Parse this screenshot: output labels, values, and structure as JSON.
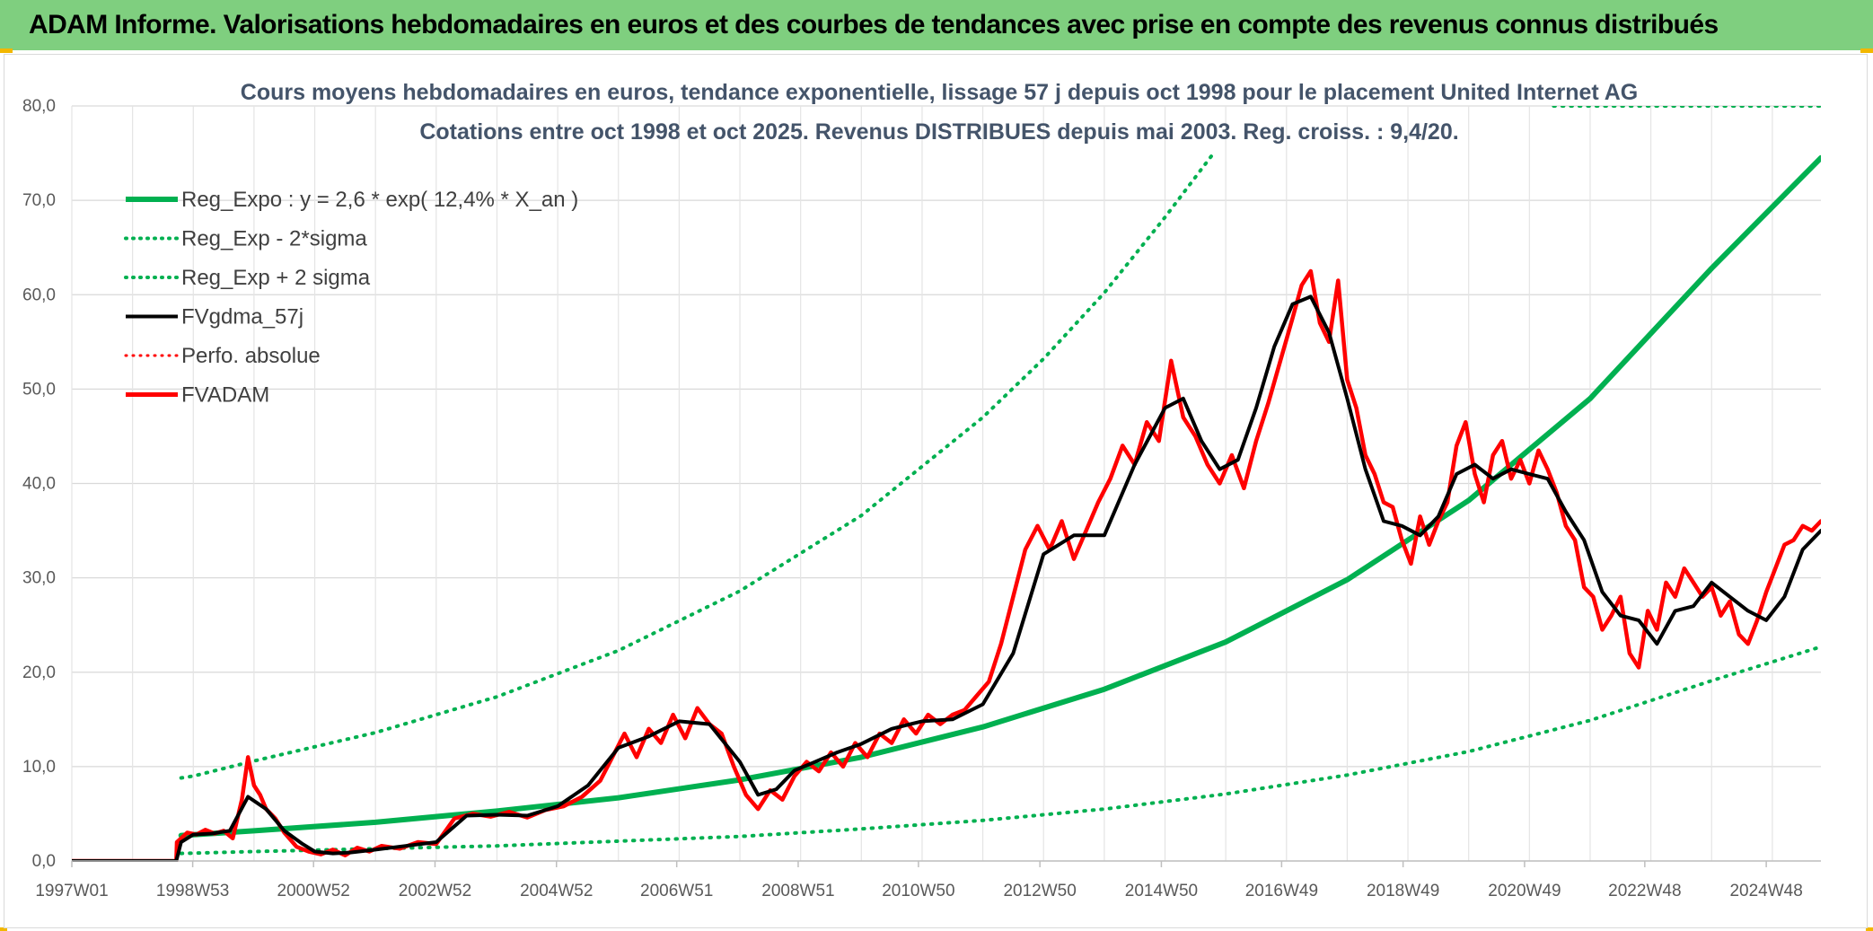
{
  "header": {
    "title": "ADAM Informe. Valorisations hebdomadaires en euros et des courbes de tendances avec prise en compte des revenus connus distribués"
  },
  "chart_data": {
    "type": "line",
    "title_line1": "Cours moyens hebdomadaires en euros, tendance exponentielle, lissage 57 j depuis oct 1998 pour le placement United Internet AG",
    "title_line2": "Cotations entre oct 1998 et oct 2025. Revenus DISTRIBUES depuis mai 2003. Reg. croiss. : 9,4/20.",
    "ylim": [
      0,
      80
    ],
    "xlim": [
      1997.0,
      2025.8
    ],
    "grid": true,
    "y_ticks": [
      "0,0",
      "10,0",
      "20,0",
      "30,0",
      "40,0",
      "50,0",
      "60,0",
      "70,0",
      "80,0"
    ],
    "x_ticks": [
      {
        "label": "1997W01",
        "year": 1997.0
      },
      {
        "label": "1998W53",
        "year": 1998.99
      },
      {
        "label": "2000W52",
        "year": 2000.98
      },
      {
        "label": "2002W52",
        "year": 2002.98
      },
      {
        "label": "2004W52",
        "year": 2004.98
      },
      {
        "label": "2006W51",
        "year": 2006.96
      },
      {
        "label": "2008W51",
        "year": 2008.96
      },
      {
        "label": "2010W50",
        "year": 2010.94
      },
      {
        "label": "2012W50",
        "year": 2012.94
      },
      {
        "label": "2014W50",
        "year": 2014.94
      },
      {
        "label": "2016W49",
        "year": 2016.92
      },
      {
        "label": "2018W49",
        "year": 2018.92
      },
      {
        "label": "2020W49",
        "year": 2020.92
      },
      {
        "label": "2022W48",
        "year": 2022.9
      },
      {
        "label": "2024W48",
        "year": 2024.9
      }
    ],
    "legend": [
      {
        "label": "Reg_Expo : y = 2,6 * exp( 12,4% *  X_an )",
        "color": "#00b050",
        "style": "solid",
        "width": 6
      },
      {
        "label": "Reg_Exp - 2*sigma",
        "color": "#00b050",
        "style": "dotted",
        "width": 4
      },
      {
        "label": "Reg_Exp + 2 sigma",
        "color": "#00b050",
        "style": "dotted",
        "width": 4
      },
      {
        "label": "FVgdma_57j",
        "color": "#000000",
        "style": "solid",
        "width": 4
      },
      {
        "label": "Perfo. absolue",
        "color": "#ff0000",
        "style": "dotted",
        "width": 3
      },
      {
        "label": "FVADAM",
        "color": "#ff0000",
        "style": "solid",
        "width": 5
      }
    ],
    "series": [
      {
        "name": "Reg_Expo",
        "x": [
          1998.8,
          2000.0,
          2002.0,
          2004.0,
          2006.0,
          2008.0,
          2010.0,
          2012.0,
          2014.0,
          2016.0,
          2018.0,
          2020.0,
          2022.0,
          2024.0,
          2025.8
        ],
        "y": [
          2.7,
          3.2,
          4.1,
          5.3,
          6.7,
          8.6,
          11.0,
          14.2,
          18.2,
          23.2,
          29.8,
          38.2,
          49.0,
          62.8,
          74.5
        ]
      },
      {
        "name": "Reg_Exp - 2*sigma",
        "x": [
          1998.8,
          2000.0,
          2002.0,
          2004.0,
          2006.0,
          2008.0,
          2010.0,
          2012.0,
          2014.0,
          2016.0,
          2018.0,
          2020.0,
          2022.0,
          2024.0,
          2025.8
        ],
        "y": [
          0.8,
          1.0,
          1.3,
          1.6,
          2.1,
          2.6,
          3.4,
          4.3,
          5.5,
          7.1,
          9.1,
          11.6,
          14.9,
          19.1,
          22.7
        ]
      },
      {
        "name": "Reg_Exp + 2 sigma",
        "x": [
          1998.8,
          1999.0,
          2000.0,
          2002.0,
          2004.0,
          2006.0,
          2008.0,
          2010.0,
          2012.0,
          2013.0,
          2014.0,
          2015.0,
          2015.8
        ],
        "y": [
          8.8,
          9.0,
          10.6,
          13.6,
          17.4,
          22.3,
          28.6,
          36.6,
          47.0,
          53.2,
          60.2,
          68.2,
          75.0
        ]
      },
      {
        "name": "Reg_Exp + 2 sigma (plafond)",
        "x": [
          2021.4,
          2025.8
        ],
        "y": [
          80.0,
          80.0
        ]
      },
      {
        "name": "FVgdma_57j",
        "x": [
          1997.0,
          1998.72,
          1998.8,
          1999.0,
          1999.3,
          1999.6,
          1999.9,
          2000.2,
          2000.5,
          2000.8,
          2001.0,
          2001.3,
          2001.6,
          2002.0,
          2002.5,
          2003.0,
          2003.5,
          2004.0,
          2004.5,
          2005.0,
          2005.5,
          2006.0,
          2006.5,
          2007.0,
          2007.5,
          2008.0,
          2008.3,
          2008.6,
          2008.9,
          2009.2,
          2009.6,
          2010.0,
          2010.5,
          2011.0,
          2011.5,
          2012.0,
          2012.5,
          2013.0,
          2013.5,
          2014.0,
          2014.5,
          2015.0,
          2015.3,
          2015.6,
          2015.9,
          2016.2,
          2016.5,
          2016.8,
          2017.1,
          2017.4,
          2017.7,
          2018.0,
          2018.3,
          2018.6,
          2018.9,
          2019.2,
          2019.5,
          2019.8,
          2020.1,
          2020.4,
          2020.7,
          2021.0,
          2021.3,
          2021.6,
          2021.9,
          2022.2,
          2022.5,
          2022.8,
          2023.1,
          2023.4,
          2023.7,
          2024.0,
          2024.3,
          2024.6,
          2024.9,
          2025.2,
          2025.5,
          2025.8
        ],
        "y": [
          0,
          0,
          2.0,
          2.8,
          2.9,
          3.2,
          6.8,
          5.5,
          3.2,
          1.8,
          1.0,
          0.8,
          0.9,
          1.2,
          1.6,
          2.0,
          4.8,
          4.9,
          4.8,
          5.8,
          8.0,
          12.0,
          13.2,
          14.8,
          14.5,
          10.5,
          7.0,
          7.6,
          9.6,
          10.4,
          11.5,
          12.4,
          14.0,
          14.8,
          15.0,
          16.6,
          22.0,
          32.5,
          34.5,
          34.5,
          42.0,
          48.0,
          49.0,
          44.5,
          41.5,
          42.5,
          48.0,
          54.5,
          59.0,
          59.8,
          56.0,
          49.0,
          41.5,
          36.0,
          35.5,
          34.5,
          36.5,
          41.0,
          42.0,
          40.5,
          41.5,
          41.0,
          40.5,
          37.0,
          34.0,
          28.5,
          26.0,
          25.5,
          23.0,
          26.5,
          27.0,
          29.5,
          28.0,
          26.5,
          25.5,
          28.0,
          33.0,
          35.0
        ]
      },
      {
        "name": "FVADAM",
        "x": [
          1997.0,
          1998.72,
          1998.73,
          1998.9,
          1999.05,
          1999.2,
          1999.35,
          1999.5,
          1999.65,
          1999.8,
          1999.9,
          2000.0,
          2000.1,
          2000.2,
          2000.35,
          2000.5,
          2000.7,
          2000.9,
          2001.1,
          2001.3,
          2001.5,
          2001.7,
          2001.9,
          2002.1,
          2002.4,
          2002.7,
          2003.0,
          2003.3,
          2003.6,
          2003.9,
          2004.2,
          2004.5,
          2004.8,
          2005.1,
          2005.4,
          2005.7,
          2005.9,
          2006.1,
          2006.3,
          2006.5,
          2006.7,
          2006.9,
          2007.1,
          2007.3,
          2007.5,
          2007.7,
          2007.9,
          2008.1,
          2008.3,
          2008.5,
          2008.7,
          2008.9,
          2009.1,
          2009.3,
          2009.5,
          2009.7,
          2009.9,
          2010.1,
          2010.3,
          2010.5,
          2010.7,
          2010.9,
          2011.1,
          2011.3,
          2011.5,
          2011.7,
          2011.9,
          2012.1,
          2012.3,
          2012.5,
          2012.7,
          2012.9,
          2013.1,
          2013.3,
          2013.5,
          2013.7,
          2013.9,
          2014.1,
          2014.3,
          2014.5,
          2014.7,
          2014.9,
          2015.1,
          2015.3,
          2015.5,
          2015.7,
          2015.9,
          2016.1,
          2016.3,
          2016.5,
          2016.7,
          2016.9,
          2017.1,
          2017.25,
          2017.4,
          2017.55,
          2017.7,
          2017.85,
          2018.0,
          2018.15,
          2018.3,
          2018.45,
          2018.6,
          2018.75,
          2018.9,
          2019.05,
          2019.2,
          2019.35,
          2019.5,
          2019.65,
          2019.8,
          2019.95,
          2020.1,
          2020.25,
          2020.4,
          2020.55,
          2020.7,
          2020.85,
          2021.0,
          2021.15,
          2021.3,
          2021.45,
          2021.6,
          2021.75,
          2021.9,
          2022.05,
          2022.2,
          2022.35,
          2022.5,
          2022.65,
          2022.8,
          2022.95,
          2023.1,
          2023.25,
          2023.4,
          2023.55,
          2023.7,
          2023.85,
          2024.0,
          2024.15,
          2024.3,
          2024.45,
          2024.6,
          2024.75,
          2024.9,
          2025.05,
          2025.2,
          2025.35,
          2025.5,
          2025.65,
          2025.8
        ],
        "y": [
          0,
          0,
          2.0,
          3.0,
          2.8,
          3.3,
          2.9,
          3.2,
          2.4,
          6.5,
          11.0,
          8.0,
          7.0,
          5.5,
          4.5,
          3.0,
          1.5,
          1.0,
          0.7,
          1.2,
          0.6,
          1.4,
          1.0,
          1.6,
          1.3,
          2.0,
          1.8,
          4.5,
          5.0,
          4.7,
          5.2,
          4.6,
          5.4,
          5.8,
          6.8,
          8.5,
          11.0,
          13.5,
          11.0,
          14.0,
          12.5,
          15.5,
          13.0,
          16.2,
          14.5,
          13.5,
          10.0,
          7.0,
          5.5,
          7.5,
          6.5,
          9.0,
          10.5,
          9.5,
          11.5,
          10.0,
          12.5,
          11.0,
          13.5,
          12.5,
          15.0,
          13.5,
          15.5,
          14.5,
          15.5,
          16.0,
          17.5,
          19.0,
          23.0,
          28.0,
          33.0,
          35.5,
          33.0,
          36.0,
          32.0,
          35.0,
          38.0,
          40.5,
          44.0,
          42.0,
          46.5,
          44.5,
          53.0,
          47.0,
          45.0,
          42.0,
          40.0,
          43.0,
          39.5,
          44.5,
          48.5,
          53.0,
          57.5,
          61.0,
          62.5,
          57.0,
          55.0,
          61.5,
          51.0,
          48.0,
          43.0,
          41.0,
          38.0,
          37.5,
          34.0,
          31.5,
          36.5,
          33.5,
          36.0,
          38.0,
          44.0,
          46.5,
          41.0,
          38.0,
          43.0,
          44.5,
          40.5,
          42.5,
          40.0,
          43.5,
          41.5,
          39.0,
          35.5,
          34.0,
          29.0,
          28.0,
          24.5,
          26.0,
          28.0,
          22.0,
          20.5,
          26.5,
          24.5,
          29.5,
          28.0,
          31.0,
          29.5,
          28.0,
          29.0,
          26.0,
          27.5,
          24.0,
          23.0,
          25.5,
          28.5,
          31.0,
          33.5,
          34.0,
          35.5,
          35.0,
          36.0
        ]
      }
    ]
  }
}
